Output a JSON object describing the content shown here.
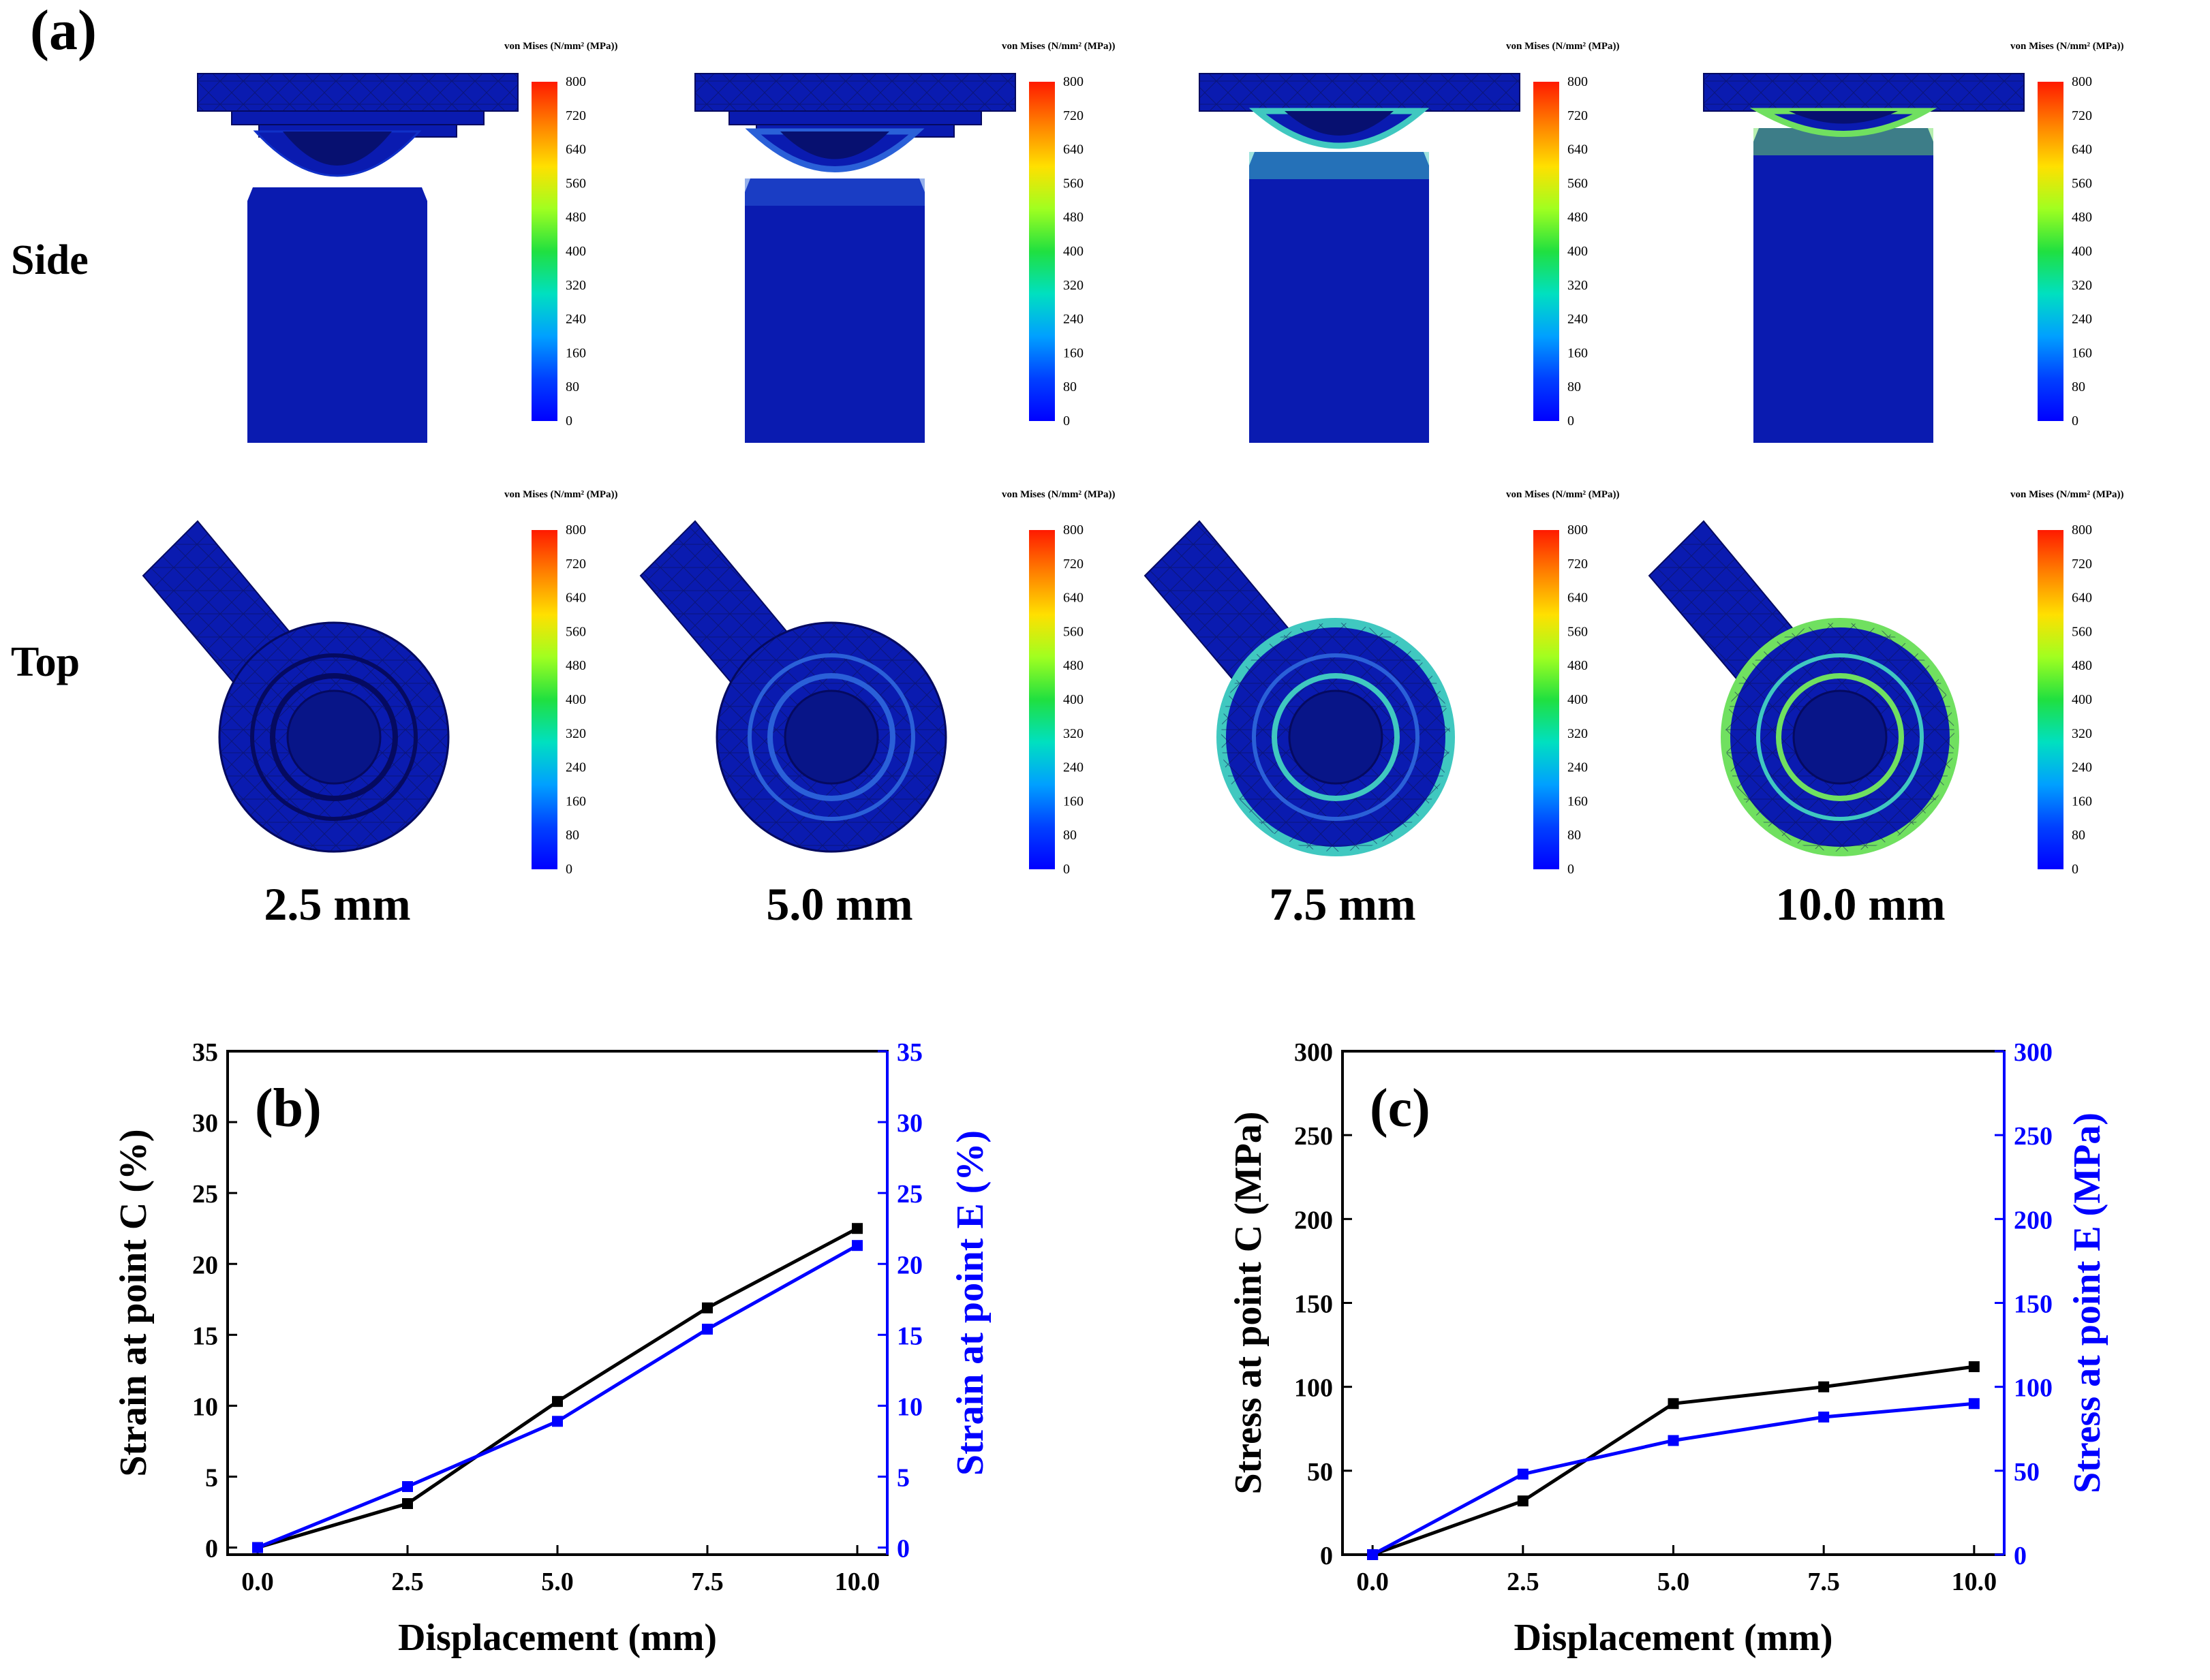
{
  "panel_a": {
    "label": "(a)",
    "row_labels": [
      "Side",
      "Top"
    ],
    "displacements": [
      "2.5 mm",
      "5.0 mm",
      "7.5 mm",
      "10.0 mm"
    ],
    "colorbar": {
      "title": "von Mises (N/mm² (MPa))",
      "ticks": [
        "800",
        "720",
        "640",
        "560",
        "480",
        "400",
        "320",
        "240",
        "160",
        "80",
        "0"
      ],
      "colors": [
        "#ff1a00",
        "#ff8000",
        "#ffe000",
        "#a0ff20",
        "#20e040",
        "#00e0c0",
        "#00a0ff",
        "#0040ff",
        "#0000ff"
      ]
    },
    "mesh_color": "#0a1bb0",
    "peak_stress_color": [
      "#1030c8",
      "#2a60d8",
      "#40c8c0",
      "#70e060"
    ]
  },
  "chart_data": [
    {
      "type": "line",
      "panel_label": "(b)",
      "x": [
        0.0,
        2.5,
        5.0,
        7.5,
        10.0
      ],
      "xticks": [
        "0.0",
        "2.5",
        "5.0",
        "7.5",
        "10.0"
      ],
      "xlim": [
        -0.5,
        10.5
      ],
      "xlabel": "Displacement (mm)",
      "ylabel": "Strain at point C (%)",
      "ylabel_right": "Strain at point E (%)",
      "ylim": [
        -0.5,
        35
      ],
      "yticks": [
        "0",
        "5",
        "10",
        "15",
        "20",
        "25",
        "30",
        "35"
      ],
      "series": [
        {
          "name": "Strain at point C",
          "color": "#000000",
          "axis": "left",
          "values": [
            0.0,
            3.1,
            10.3,
            16.9,
            22.5
          ]
        },
        {
          "name": "Strain at point E",
          "color": "#0000ff",
          "axis": "right",
          "values": [
            0.0,
            4.3,
            8.9,
            15.4,
            21.3
          ]
        }
      ]
    },
    {
      "type": "line",
      "panel_label": "(c)",
      "x": [
        0.0,
        2.5,
        5.0,
        7.5,
        10.0
      ],
      "xticks": [
        "0.0",
        "2.5",
        "5.0",
        "7.5",
        "10.0"
      ],
      "xlim": [
        -0.5,
        10.5
      ],
      "xlabel": "Displacement (mm)",
      "ylabel": "Stress at point C (MPa)",
      "ylabel_right": "Stress at point E (MPa)",
      "ylim": [
        0,
        300
      ],
      "yticks": [
        "0",
        "50",
        "100",
        "150",
        "200",
        "250",
        "300"
      ],
      "series": [
        {
          "name": "Stress at point C",
          "color": "#000000",
          "axis": "left",
          "values": [
            0,
            32,
            90,
            100,
            112
          ]
        },
        {
          "name": "Stress at point E",
          "color": "#0000ff",
          "axis": "right",
          "values": [
            0,
            48,
            68,
            82,
            90
          ]
        }
      ]
    }
  ]
}
